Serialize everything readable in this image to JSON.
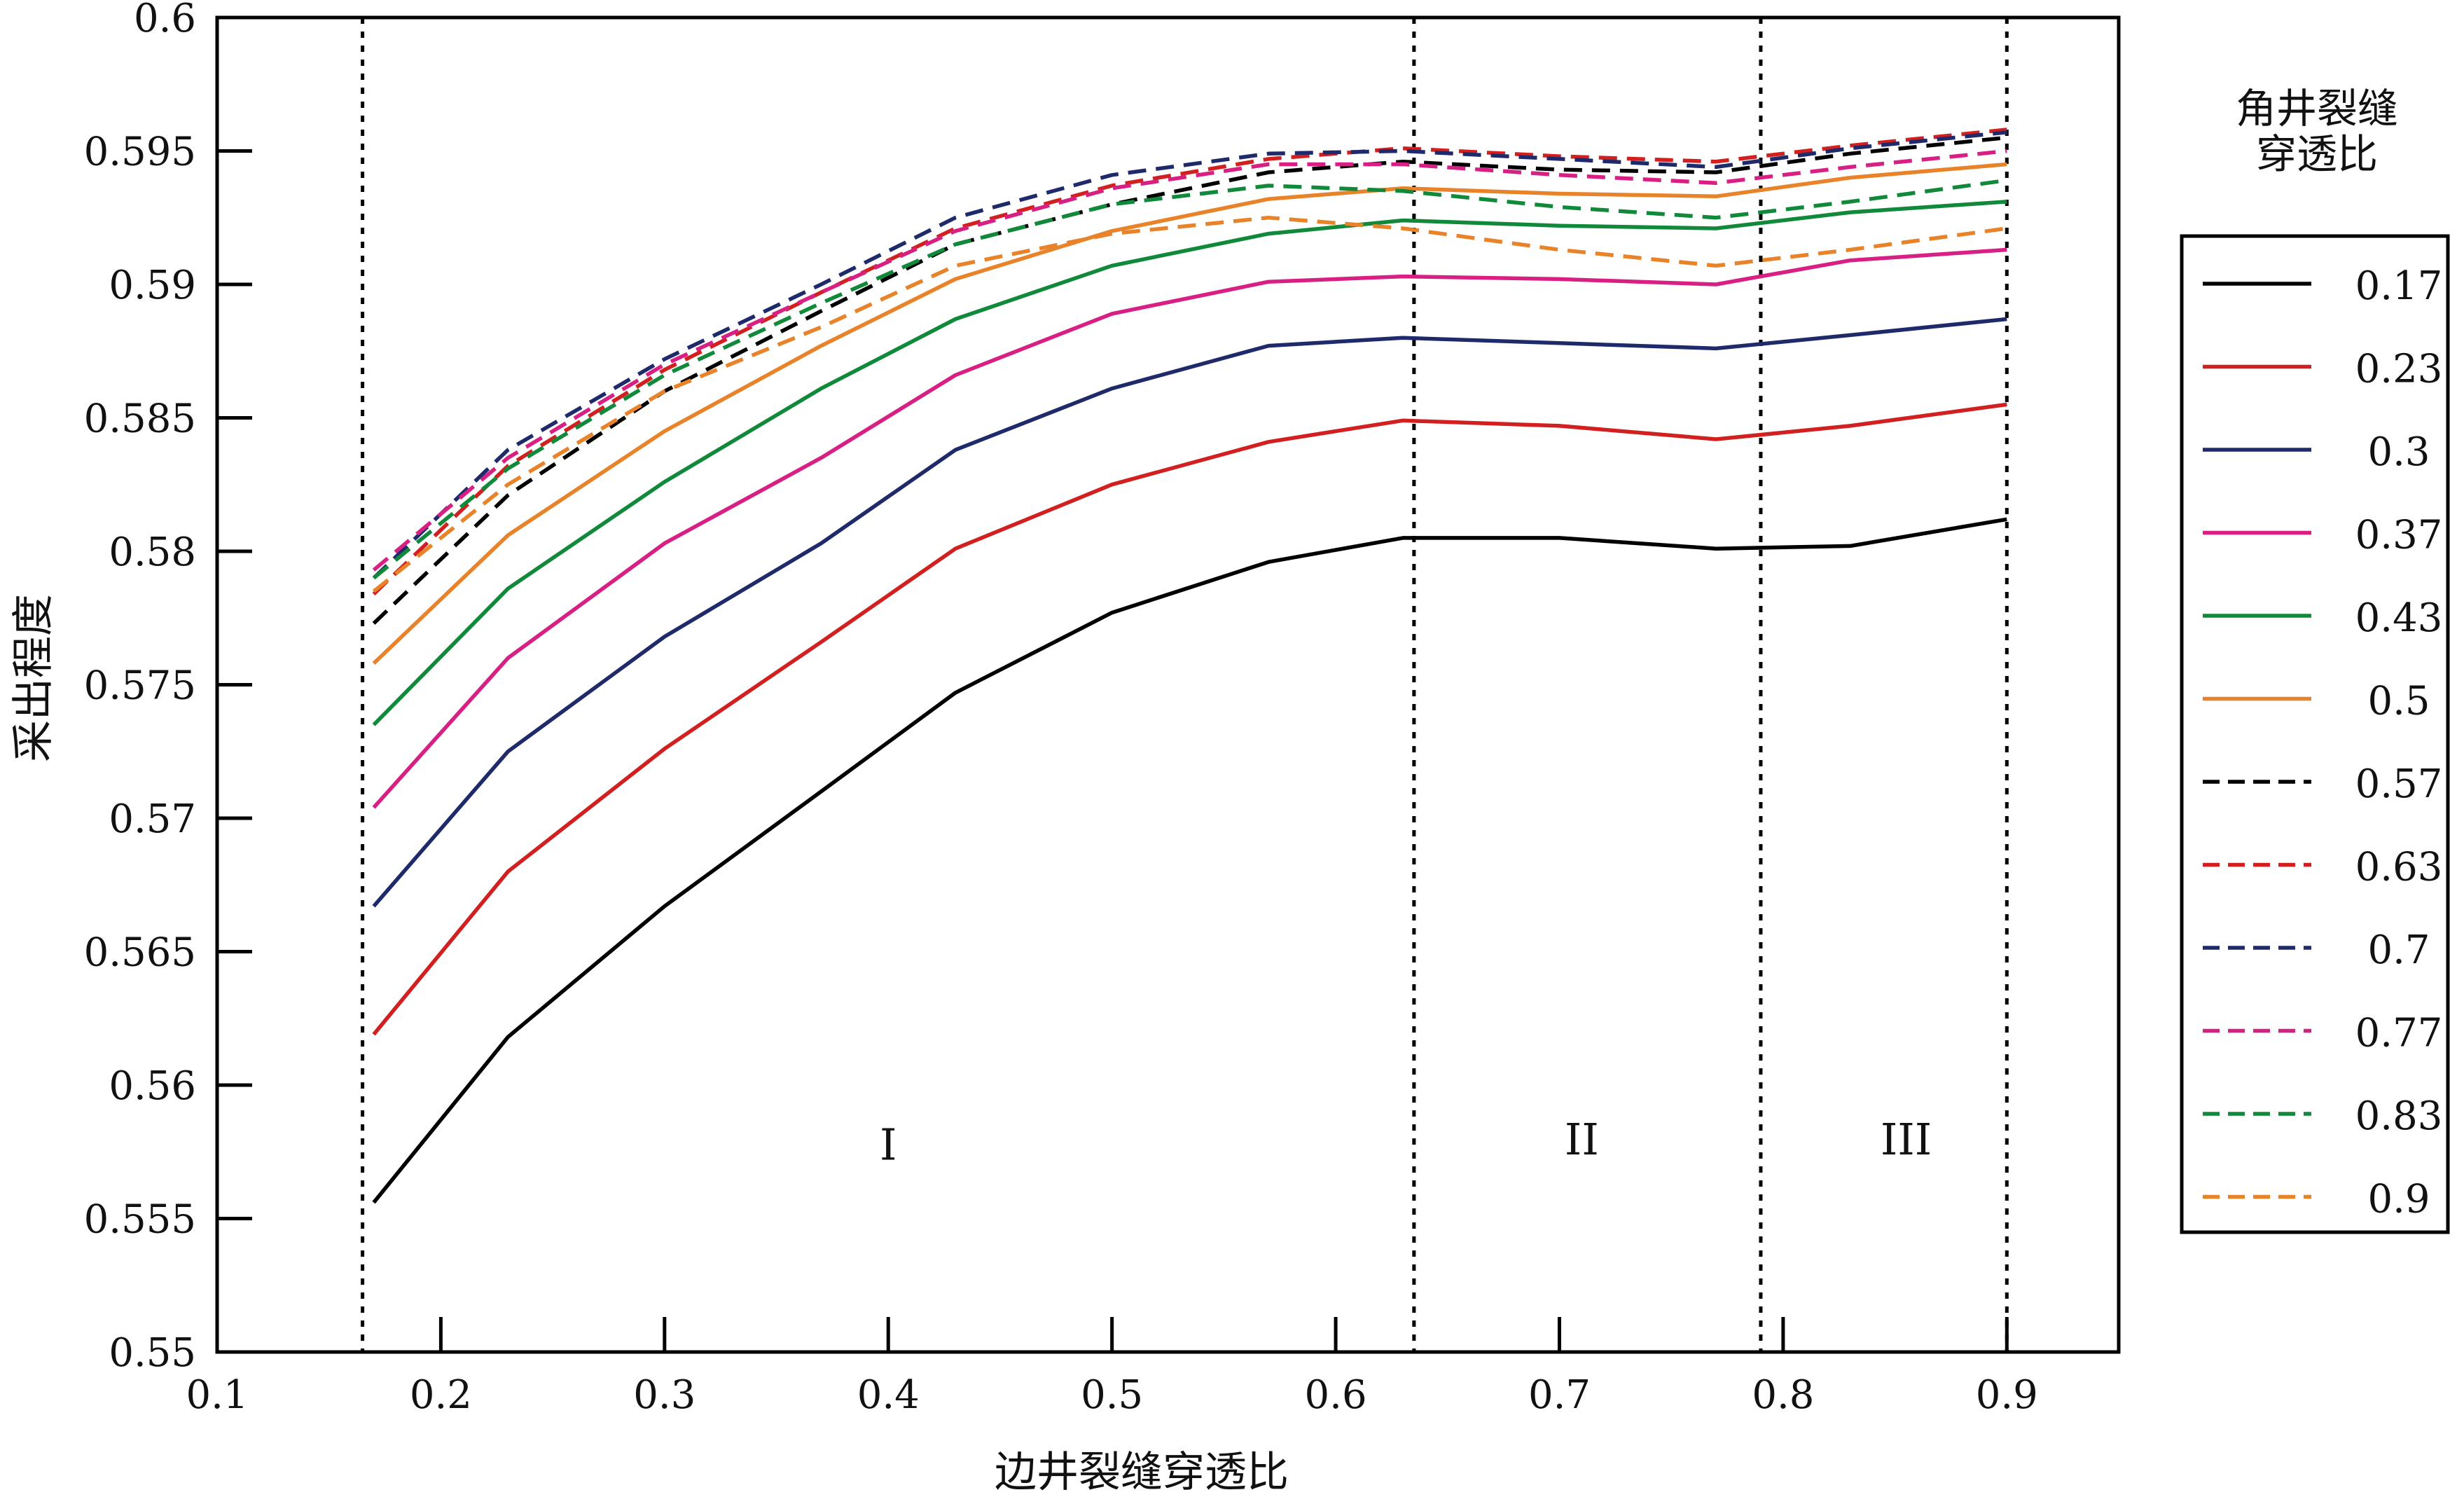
{
  "chart_data": {
    "type": "line",
    "title": "",
    "xlabel": "边井裂缝穿透比",
    "ylabel": "采出程度",
    "xlim": [
      0.1,
      0.95
    ],
    "ylim": [
      0.55,
      0.6
    ],
    "x_ticks": [
      "0.1",
      "0.2",
      "0.3",
      "0.4",
      "0.5",
      "0.6",
      "0.7",
      "0.8",
      "0.9"
    ],
    "y_ticks": [
      "0.55",
      "0.555",
      "0.56",
      "0.565",
      "0.57",
      "0.575",
      "0.58",
      "0.585",
      "0.59",
      "0.595",
      "0.6"
    ],
    "grid": false,
    "legend": {
      "title": "角井裂缝穿透比",
      "placement": "right-outside"
    },
    "x": [
      0.17,
      0.23,
      0.3,
      0.37,
      0.43,
      0.5,
      0.57,
      0.63,
      0.7,
      0.77,
      0.83,
      0.9
    ],
    "series": [
      {
        "name": "0.17",
        "color": "#000000",
        "dash": false,
        "values": [
          0.5556,
          0.5618,
          0.5667,
          0.571,
          0.5747,
          0.5777,
          0.5796,
          0.5805,
          0.5805,
          0.5801,
          0.5802,
          0.5812
        ]
      },
      {
        "name": "0.23",
        "color": "#d22020",
        "dash": false,
        "values": [
          0.5619,
          0.568,
          0.5726,
          0.5766,
          0.5801,
          0.5825,
          0.5841,
          0.5849,
          0.5847,
          0.5842,
          0.5847,
          0.5855
        ]
      },
      {
        "name": "0.3",
        "color": "#1f2a6b",
        "dash": false,
        "values": [
          0.5667,
          0.5725,
          0.5768,
          0.5803,
          0.5838,
          0.5861,
          0.5877,
          0.588,
          0.5878,
          0.5876,
          0.5881,
          0.5887
        ]
      },
      {
        "name": "0.37",
        "color": "#d81f84",
        "dash": false,
        "values": [
          0.5704,
          0.576,
          0.5803,
          0.5835,
          0.5866,
          0.5889,
          0.5901,
          0.5903,
          0.5902,
          0.59,
          0.5909,
          0.5913
        ]
      },
      {
        "name": "0.43",
        "color": "#11893a",
        "dash": false,
        "values": [
          0.5735,
          0.5786,
          0.5826,
          0.5861,
          0.5887,
          0.5907,
          0.5919,
          0.5924,
          0.5922,
          0.5921,
          0.5927,
          0.5931
        ]
      },
      {
        "name": "0.5",
        "color": "#e8832a",
        "dash": false,
        "values": [
          0.5758,
          0.5806,
          0.5845,
          0.5877,
          0.5902,
          0.592,
          0.5932,
          0.5936,
          0.5934,
          0.5933,
          0.594,
          0.5945
        ]
      },
      {
        "name": "0.57",
        "color": "#000000",
        "dash": true,
        "values": [
          0.5773,
          0.5821,
          0.586,
          0.589,
          0.5915,
          0.593,
          0.5942,
          0.5946,
          0.5943,
          0.5942,
          0.5949,
          0.5955
        ]
      },
      {
        "name": "0.63",
        "color": "#d22020",
        "dash": true,
        "values": [
          0.5784,
          0.5832,
          0.5868,
          0.5897,
          0.5921,
          0.5937,
          0.5947,
          0.5951,
          0.5948,
          0.5946,
          0.5952,
          0.5958
        ]
      },
      {
        "name": "0.7",
        "color": "#1f2a6b",
        "dash": true,
        "values": [
          0.579,
          0.5838,
          0.5872,
          0.59,
          0.5925,
          0.5941,
          0.5949,
          0.595,
          0.5947,
          0.5944,
          0.5951,
          0.5957
        ]
      },
      {
        "name": "0.77",
        "color": "#d81f84",
        "dash": true,
        "values": [
          0.5793,
          0.5835,
          0.587,
          0.5897,
          0.592,
          0.5936,
          0.5945,
          0.5945,
          0.5941,
          0.5938,
          0.5944,
          0.595
        ]
      },
      {
        "name": "0.83",
        "color": "#11893a",
        "dash": true,
        "values": [
          0.579,
          0.5831,
          0.5866,
          0.5893,
          0.5915,
          0.593,
          0.5937,
          0.5935,
          0.5929,
          0.5925,
          0.5931,
          0.5939
        ]
      },
      {
        "name": "0.9",
        "color": "#e8832a",
        "dash": true,
        "values": [
          0.5785,
          0.5825,
          0.586,
          0.5884,
          0.5907,
          0.5919,
          0.5925,
          0.5921,
          0.5913,
          0.5907,
          0.5913,
          0.5921
        ]
      }
    ],
    "vlines": [
      0.165,
      0.635,
      0.79,
      0.9
    ],
    "regions": [
      {
        "label": "I",
        "x": 0.4,
        "y": 0.5572
      },
      {
        "label": "II",
        "x": 0.71,
        "y": 0.5574
      },
      {
        "label": "III",
        "x": 0.855,
        "y": 0.5574
      }
    ]
  }
}
